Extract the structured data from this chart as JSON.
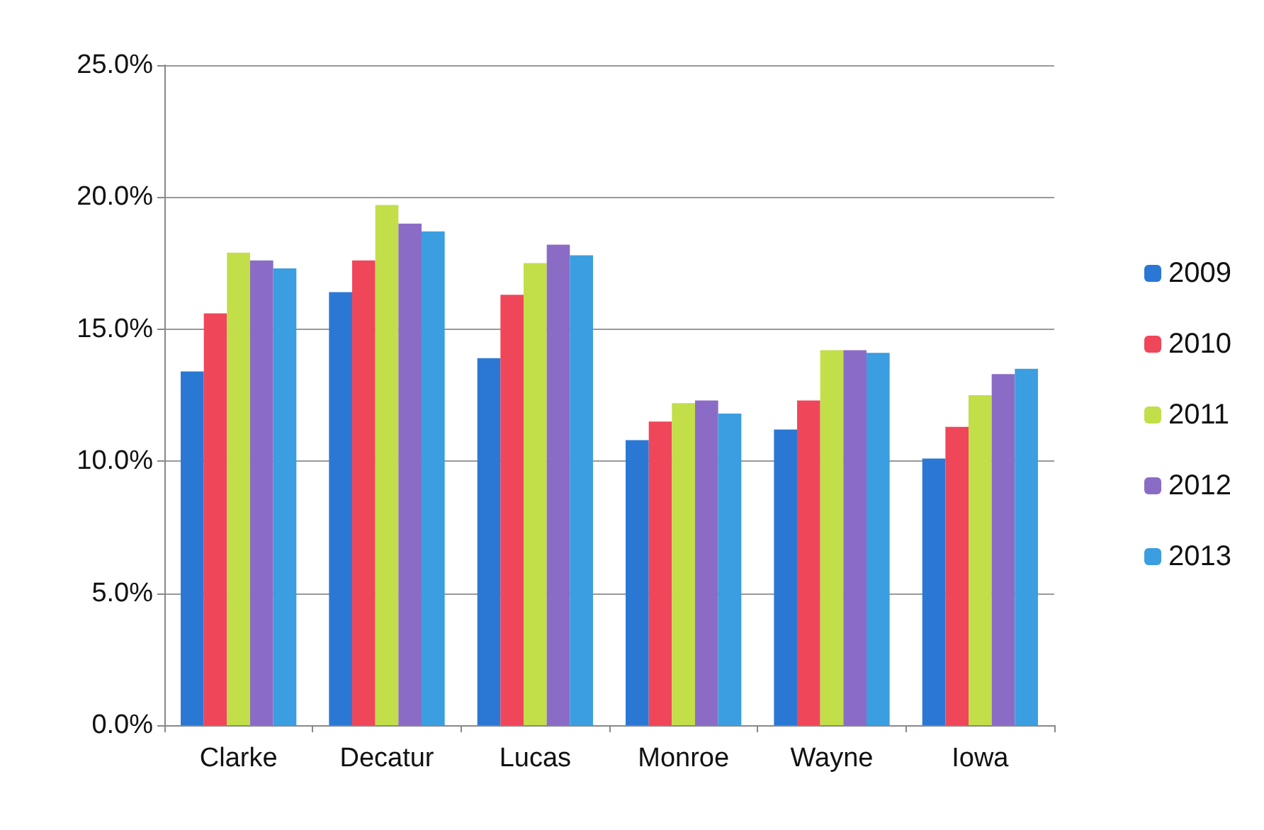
{
  "chart_data": {
    "type": "bar",
    "categories": [
      "Clarke",
      "Decatur",
      "Lucas",
      "Monroe",
      "Wayne",
      "Iowa"
    ],
    "series": [
      {
        "name": "2009",
        "color": "#2a78d4",
        "values": [
          13.4,
          16.4,
          13.9,
          10.8,
          11.2,
          10.1
        ]
      },
      {
        "name": "2010",
        "color": "#f0465a",
        "values": [
          15.6,
          17.6,
          16.3,
          11.5,
          12.3,
          11.3
        ]
      },
      {
        "name": "2011",
        "color": "#c2de48",
        "values": [
          17.9,
          19.7,
          17.5,
          12.2,
          14.2,
          12.5
        ]
      },
      {
        "name": "2012",
        "color": "#8a6cc6",
        "values": [
          17.6,
          19.0,
          18.2,
          12.3,
          14.2,
          13.3
        ]
      },
      {
        "name": "2013",
        "color": "#3a9ee0",
        "values": [
          17.3,
          18.7,
          17.8,
          11.8,
          14.1,
          13.5
        ]
      }
    ],
    "ylim": [
      0,
      25
    ],
    "yticks": [
      {
        "value": 0,
        "label": "0.0%"
      },
      {
        "value": 5,
        "label": "5.0%"
      },
      {
        "value": 10,
        "label": "10.0%"
      },
      {
        "value": 15,
        "label": "15.0%"
      },
      {
        "value": 20,
        "label": "20.0%"
      },
      {
        "value": 25,
        "label": "25.0%"
      }
    ],
    "grid": "y",
    "legend": "right"
  }
}
